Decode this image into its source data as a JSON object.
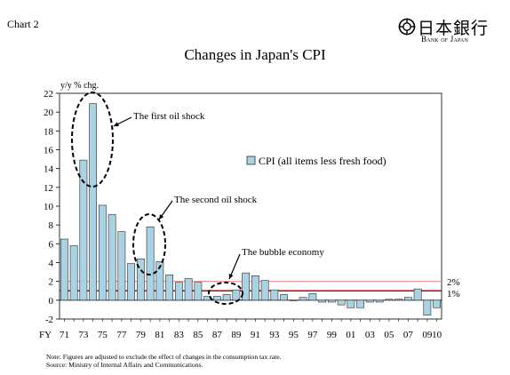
{
  "header": {
    "chart_label": "Chart 2",
    "logo_kanji": "日本銀行",
    "logo_sub": "Bank of Japan",
    "title": "Changes in Japan's CPI"
  },
  "notes": {
    "note": "Note: Figures are adjusted to exclude the effect of changes in the consumption tax rate.",
    "source": "Source: Ministry of Internal Affairs and Communications."
  },
  "colors": {
    "bar_fill": "#a9d3e4",
    "bar_stroke": "#2b2b2b",
    "line_2pct": "#e8897c",
    "line_1pct": "#c00000"
  },
  "chart_data": {
    "type": "bar",
    "title": "Changes in Japan's CPI",
    "ylabel": "y/y % chg.",
    "xlabel": "FY",
    "ylim": [
      -2,
      22
    ],
    "yticks": [
      -2,
      0,
      2,
      4,
      6,
      8,
      10,
      12,
      14,
      16,
      18,
      20,
      22
    ],
    "grid": false,
    "legend": {
      "position": "right",
      "entries": [
        "CPI (all items less fresh food)"
      ]
    },
    "categories": [
      "71",
      "72",
      "73",
      "74",
      "75",
      "76",
      "77",
      "78",
      "79",
      "80",
      "81",
      "82",
      "83",
      "84",
      "85",
      "86",
      "87",
      "88",
      "89",
      "90",
      "91",
      "92",
      "93",
      "94",
      "95",
      "96",
      "97",
      "98",
      "99",
      "00",
      "01",
      "02",
      "03",
      "04",
      "05",
      "06",
      "07",
      "08",
      "09",
      "10"
    ],
    "xtick_labels": [
      "71",
      "73",
      "75",
      "77",
      "79",
      "81",
      "83",
      "85",
      "87",
      "89",
      "91",
      "93",
      "95",
      "97",
      "99",
      "01",
      "03",
      "05",
      "07",
      "09",
      "10"
    ],
    "series": [
      {
        "name": "CPI (all items less fresh food)",
        "values": [
          6.5,
          5.8,
          14.9,
          20.9,
          10.1,
          9.1,
          7.3,
          3.9,
          4.4,
          7.8,
          4.1,
          2.7,
          1.9,
          2.3,
          1.9,
          0.4,
          0.4,
          0.6,
          1.1,
          2.9,
          2.6,
          2.1,
          1.1,
          0.6,
          0.0,
          0.3,
          0.7,
          -0.2,
          -0.2,
          -0.5,
          -0.8,
          -0.8,
          -0.2,
          -0.2,
          0.1,
          0.1,
          0.3,
          1.2,
          -1.6,
          -0.8
        ]
      }
    ],
    "reference_lines": [
      {
        "value": 2,
        "label": "2%"
      },
      {
        "value": 1,
        "label": "1%"
      }
    ],
    "annotations": [
      {
        "text": "The first oil shock",
        "years": [
          "73",
          "75"
        ]
      },
      {
        "text": "The second oil shock",
        "years": [
          "79",
          "81"
        ]
      },
      {
        "text": "The bubble economy",
        "years": [
          "86",
          "89"
        ]
      }
    ]
  }
}
